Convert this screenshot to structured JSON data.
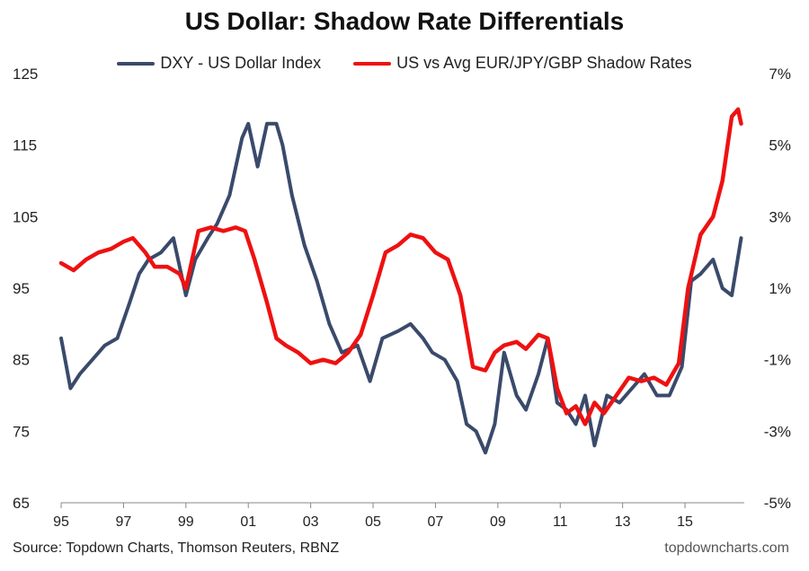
{
  "chart_data": {
    "type": "line",
    "title": "US Dollar: Shadow Rate Differentials",
    "xlabel": "",
    "ylabel_left": "",
    "ylabel_right": "",
    "xlim": [
      1995,
      2016.9
    ],
    "ylim_left": [
      65,
      125
    ],
    "ylim_right": [
      -5,
      7
    ],
    "x_ticks": [
      1995,
      1997,
      1999,
      2001,
      2003,
      2005,
      2007,
      2009,
      2011,
      2013,
      2015
    ],
    "x_tick_labels": [
      "95",
      "97",
      "99",
      "01",
      "03",
      "05",
      "07",
      "09",
      "11",
      "13",
      "15"
    ],
    "y_left_ticks": [
      65,
      75,
      85,
      95,
      105,
      115,
      125
    ],
    "y_left_tick_labels": [
      "65",
      "75",
      "85",
      "95",
      "105",
      "115",
      "125"
    ],
    "y_right_ticks": [
      -5,
      -3,
      -1,
      1,
      3,
      5,
      7
    ],
    "y_right_tick_labels": [
      "-5%",
      "-3%",
      "-1%",
      "1%",
      "3%",
      "5%",
      "7%"
    ],
    "grid": false,
    "legend_position": "top-center",
    "series": [
      {
        "name": "DXY - US Dollar Index",
        "axis": "left",
        "color": "#3a4a6b",
        "x": [
          1995.0,
          1995.3,
          1995.6,
          1996.0,
          1996.4,
          1996.8,
          1997.2,
          1997.5,
          1997.8,
          1998.2,
          1998.6,
          1999.0,
          1999.3,
          1999.7,
          2000.0,
          2000.4,
          2000.8,
          2001.0,
          2001.3,
          2001.6,
          2001.9,
          2002.1,
          2002.4,
          2002.8,
          2003.2,
          2003.6,
          2004.0,
          2004.5,
          2004.9,
          2005.3,
          2005.8,
          2006.2,
          2006.6,
          2006.9,
          2007.3,
          2007.7,
          2008.0,
          2008.3,
          2008.6,
          2008.9,
          2009.2,
          2009.6,
          2009.9,
          2010.3,
          2010.6,
          2010.9,
          2011.2,
          2011.5,
          2011.8,
          2012.1,
          2012.5,
          2012.9,
          2013.3,
          2013.7,
          2014.1,
          2014.5,
          2014.9,
          2015.2,
          2015.5,
          2015.9,
          2016.2,
          2016.5,
          2016.8
        ],
        "values": [
          88,
          81,
          83,
          85,
          87,
          88,
          93,
          97,
          99,
          100,
          102,
          94,
          99,
          102,
          104,
          108,
          116,
          118,
          112,
          118,
          118,
          115,
          108,
          101,
          96,
          90,
          86,
          87,
          82,
          88,
          89,
          90,
          88,
          86,
          85,
          82,
          76,
          75,
          72,
          76,
          86,
          80,
          78,
          83,
          88,
          79,
          78,
          76,
          80,
          73,
          80,
          79,
          81,
          83,
          80,
          80,
          84,
          96,
          97,
          99,
          95,
          94,
          102
        ]
      },
      {
        "name": "US vs Avg EUR/JPY/GBP Shadow Rates",
        "axis": "right",
        "color": "#ee1111",
        "x": [
          1995.0,
          1995.4,
          1995.8,
          1996.2,
          1996.6,
          1997.0,
          1997.3,
          1997.7,
          1998.0,
          1998.4,
          1998.8,
          1999.0,
          1999.4,
          1999.8,
          2000.2,
          2000.6,
          2000.9,
          2001.2,
          2001.6,
          2001.9,
          2002.2,
          2002.6,
          2003.0,
          2003.4,
          2003.8,
          2004.2,
          2004.6,
          2005.0,
          2005.4,
          2005.8,
          2006.2,
          2006.6,
          2007.0,
          2007.4,
          2007.8,
          2008.2,
          2008.6,
          2008.9,
          2009.2,
          2009.6,
          2009.9,
          2010.3,
          2010.6,
          2010.9,
          2011.2,
          2011.5,
          2011.8,
          2012.1,
          2012.4,
          2012.8,
          2013.2,
          2013.6,
          2014.0,
          2014.4,
          2014.8,
          2015.1,
          2015.5,
          2015.9,
          2016.2,
          2016.5,
          2016.7,
          2016.8
        ],
        "values": [
          1.7,
          1.5,
          1.8,
          2.0,
          2.1,
          2.3,
          2.4,
          2.0,
          1.6,
          1.6,
          1.4,
          1.0,
          2.6,
          2.7,
          2.6,
          2.7,
          2.6,
          1.8,
          0.6,
          -0.4,
          -0.6,
          -0.8,
          -1.1,
          -1.0,
          -1.1,
          -0.8,
          -0.3,
          0.8,
          2.0,
          2.2,
          2.5,
          2.4,
          2.0,
          1.8,
          0.8,
          -1.2,
          -1.3,
          -0.8,
          -0.6,
          -0.5,
          -0.7,
          -0.3,
          -0.4,
          -1.8,
          -2.5,
          -2.3,
          -2.8,
          -2.2,
          -2.5,
          -2.0,
          -1.5,
          -1.6,
          -1.5,
          -1.7,
          -1.1,
          1.0,
          2.5,
          3.0,
          4.0,
          5.8,
          6.0,
          5.6
        ]
      }
    ]
  },
  "footer": {
    "source": "Source: Topdown Charts, Thomson Reuters, RBNZ",
    "brand": "topdowncharts.com"
  }
}
